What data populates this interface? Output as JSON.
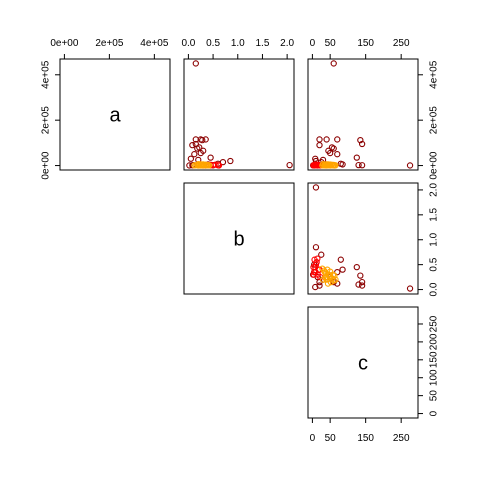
{
  "chart_data": {
    "type": "scatter",
    "variables": [
      "a",
      "b",
      "c"
    ],
    "layout": "upper-triangle pairs matrix; variable names on diagonal",
    "axes": {
      "a": {
        "range": [
          0,
          450000
        ],
        "ticks": [
          0,
          200000,
          400000
        ],
        "tick_labels": [
          "0e+00",
          "2e+05",
          "4e+05"
        ]
      },
      "b": {
        "range": [
          0,
          2.05
        ],
        "ticks": [
          0,
          0.5,
          1,
          1.5,
          2
        ],
        "tick_labels": [
          "0.0",
          "0.5",
          "1.0",
          "1.5",
          "2.0"
        ]
      },
      "c": {
        "range": [
          0,
          285
        ],
        "ticks": [
          0,
          50,
          150,
          250
        ],
        "tick_labels": [
          "0",
          "50",
          "150",
          "250"
        ]
      },
      "c_right": {
        "ticks": [
          0,
          50,
          100,
          150,
          200,
          250
        ],
        "tick_labels": [
          "0",
          "50",
          "100",
          "150",
          "200",
          "250"
        ]
      }
    },
    "colors": {
      "dark": "#8b0000",
      "red": "#ff0000",
      "orange": "#ffa500"
    },
    "points": [
      {
        "a": 450000,
        "b": 0.15,
        "c": 60,
        "group": "dark"
      },
      {
        "a": 115000,
        "b": 0.15,
        "c": 20,
        "group": "dark"
      },
      {
        "a": 115000,
        "b": 0.25,
        "c": 40,
        "group": "dark"
      },
      {
        "a": 115000,
        "b": 0.35,
        "c": 70,
        "group": "dark"
      },
      {
        "a": 112000,
        "b": 0.28,
        "c": 135,
        "group": "dark"
      },
      {
        "a": 95000,
        "b": 0.15,
        "c": 140,
        "group": "dark"
      },
      {
        "a": 90000,
        "b": 0.08,
        "c": 20,
        "group": "dark"
      },
      {
        "a": 80000,
        "b": 0.22,
        "c": 55,
        "group": "dark"
      },
      {
        "a": 75000,
        "b": 0.18,
        "c": 60,
        "group": "dark"
      },
      {
        "a": 65000,
        "b": 0.3,
        "c": 45,
        "group": "dark"
      },
      {
        "a": 55000,
        "b": 0.25,
        "c": 50,
        "group": "dark"
      },
      {
        "a": 50000,
        "b": 0.12,
        "c": 70,
        "group": "dark"
      },
      {
        "a": 35000,
        "b": 0.45,
        "c": 125,
        "group": "dark"
      },
      {
        "a": 30000,
        "b": 0.05,
        "c": 8,
        "group": "dark"
      },
      {
        "a": 25000,
        "b": 0.2,
        "c": 30,
        "group": "dark"
      },
      {
        "a": 20000,
        "b": 0.85,
        "c": 10,
        "group": "dark"
      },
      {
        "a": 15000,
        "b": 0.7,
        "c": 25,
        "group": "dark"
      },
      {
        "a": 8000,
        "b": 0.6,
        "c": 80,
        "group": "dark"
      },
      {
        "a": 5000,
        "b": 0.4,
        "c": 85,
        "group": "dark"
      },
      {
        "a": 3000,
        "b": 0.25,
        "c": 15,
        "group": "dark"
      },
      {
        "a": 2000,
        "b": 2.05,
        "c": 10,
        "group": "dark"
      },
      {
        "a": 2000,
        "b": 0.1,
        "c": 130,
        "group": "dark"
      },
      {
        "a": 1500,
        "b": 0.08,
        "c": 140,
        "group": "dark"
      },
      {
        "a": 1000,
        "b": 0.5,
        "c": 5,
        "group": "dark"
      },
      {
        "a": 800,
        "b": 0.3,
        "c": 2,
        "group": "dark"
      },
      {
        "a": 600,
        "b": 0.35,
        "c": 5,
        "group": "dark"
      },
      {
        "a": 500,
        "b": 0.02,
        "c": 275,
        "group": "dark"
      },
      {
        "a": 4000,
        "b": 0.55,
        "c": 12,
        "group": "red"
      },
      {
        "a": 3500,
        "b": 0.45,
        "c": 8,
        "group": "red"
      },
      {
        "a": 3000,
        "b": 0.4,
        "c": 18,
        "group": "red"
      },
      {
        "a": 2500,
        "b": 0.35,
        "c": 5,
        "group": "red"
      },
      {
        "a": 2000,
        "b": 0.5,
        "c": 10,
        "group": "red"
      },
      {
        "a": 1800,
        "b": 0.3,
        "c": 15,
        "group": "red"
      },
      {
        "a": 1500,
        "b": 0.6,
        "c": 6,
        "group": "red"
      },
      {
        "a": 1200,
        "b": 0.4,
        "c": 20,
        "group": "red"
      },
      {
        "a": 1000,
        "b": 0.45,
        "c": 3,
        "group": "red"
      },
      {
        "a": 900,
        "b": 0.25,
        "c": 22,
        "group": "red"
      },
      {
        "a": 700,
        "b": 0.35,
        "c": 9,
        "group": "red"
      },
      {
        "a": 600,
        "b": 0.62,
        "c": 14,
        "group": "red"
      },
      {
        "a": 500,
        "b": 0.3,
        "c": 4,
        "group": "red"
      },
      {
        "a": 6000,
        "b": 0.2,
        "c": 30,
        "group": "orange"
      },
      {
        "a": 5500,
        "b": 0.25,
        "c": 40,
        "group": "orange"
      },
      {
        "a": 5000,
        "b": 0.3,
        "c": 45,
        "group": "orange"
      },
      {
        "a": 4500,
        "b": 0.28,
        "c": 50,
        "group": "orange"
      },
      {
        "a": 4000,
        "b": 0.35,
        "c": 35,
        "group": "orange"
      },
      {
        "a": 3500,
        "b": 0.22,
        "c": 55,
        "group": "orange"
      },
      {
        "a": 3000,
        "b": 0.18,
        "c": 60,
        "group": "orange"
      },
      {
        "a": 2500,
        "b": 0.4,
        "c": 42,
        "group": "orange"
      },
      {
        "a": 2000,
        "b": 0.32,
        "c": 38,
        "group": "orange"
      },
      {
        "a": 1800,
        "b": 0.26,
        "c": 48,
        "group": "orange"
      },
      {
        "a": 1500,
        "b": 0.15,
        "c": 52,
        "group": "orange"
      },
      {
        "a": 1200,
        "b": 0.38,
        "c": 33,
        "group": "orange"
      },
      {
        "a": 1000,
        "b": 0.2,
        "c": 65,
        "group": "orange"
      },
      {
        "a": 900,
        "b": 0.42,
        "c": 28,
        "group": "orange"
      },
      {
        "a": 800,
        "b": 0.3,
        "c": 58,
        "group": "orange"
      },
      {
        "a": 700,
        "b": 0.12,
        "c": 44,
        "group": "orange"
      },
      {
        "a": 600,
        "b": 0.24,
        "c": 36,
        "group": "orange"
      },
      {
        "a": 500,
        "b": 0.36,
        "c": 50,
        "group": "orange"
      },
      {
        "a": 400,
        "b": 0.2,
        "c": 40,
        "group": "orange"
      },
      {
        "a": 300,
        "b": 0.28,
        "c": 62,
        "group": "orange"
      }
    ]
  }
}
